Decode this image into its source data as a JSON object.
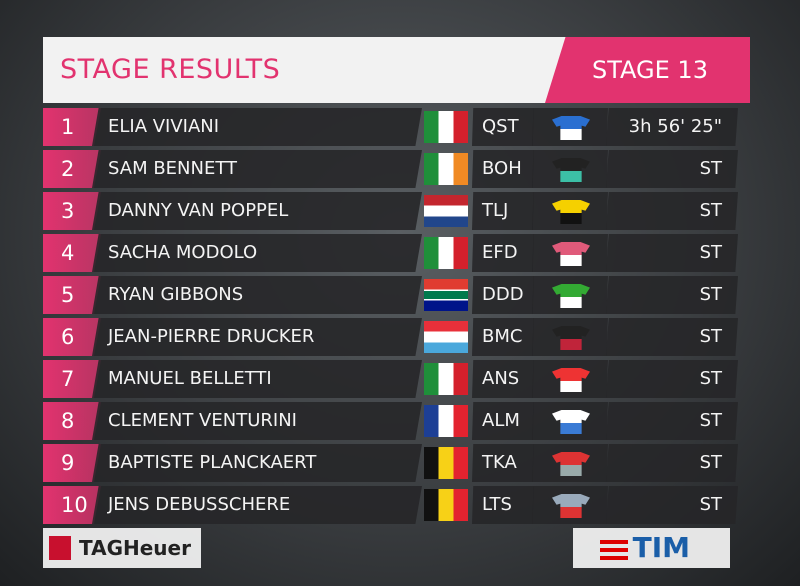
{
  "header": {
    "title": "STAGE RESULTS",
    "stage": "STAGE 13"
  },
  "table": {
    "rows": [
      {
        "rank": 1,
        "name": "ELIA VIVIANI",
        "team": "QST",
        "time": "3h 56' 25\""
      },
      {
        "rank": 2,
        "name": "SAM BENNETT",
        "team": "BOH",
        "time": "ST"
      },
      {
        "rank": 3,
        "name": "DANNY VAN POPPEL",
        "team": "TLJ",
        "time": "ST"
      },
      {
        "rank": 4,
        "name": "SACHA MODOLO",
        "team": "EFD",
        "time": "ST"
      },
      {
        "rank": 5,
        "name": "RYAN GIBBONS",
        "team": "DDD",
        "time": "ST"
      },
      {
        "rank": 6,
        "name": "JEAN-PIERRE DRUCKER",
        "team": "BMC",
        "time": "ST"
      },
      {
        "rank": 7,
        "name": "MANUEL BELLETTI",
        "team": "ANS",
        "time": "ST"
      },
      {
        "rank": 8,
        "name": "CLEMENT VENTURINI",
        "team": "ALM",
        "time": "ST"
      },
      {
        "rank": 9,
        "name": "BAPTISTE PLANCKAERT",
        "team": "TKA",
        "time": "ST"
      },
      {
        "rank": 10,
        "name": "JENS DEBUSSCHERE",
        "team": "LTS",
        "time": "ST"
      }
    ]
  },
  "footer": {
    "sponsor_left": "TAGHeuer",
    "sponsor_right": "TIM"
  }
}
